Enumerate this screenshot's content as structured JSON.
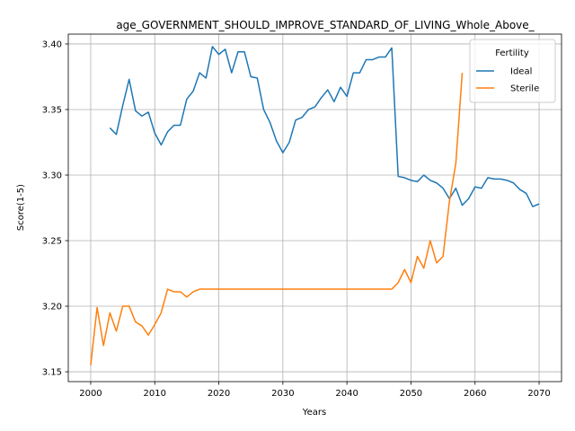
{
  "chart_data": {
    "type": "line",
    "title": "age_GOVERNMENT_SHOULD_IMPROVE_STANDARD_OF_LIVING_Whole_Above_",
    "xlabel": "Years",
    "ylabel": "Score(1-5)",
    "xlim": [
      1996.5,
      2073.5
    ],
    "ylim": [
      3.1425,
      3.4075
    ],
    "xticks": [
      2000,
      2010,
      2020,
      2030,
      2040,
      2050,
      2060,
      2070
    ],
    "yticks": [
      3.15,
      3.2,
      3.25,
      3.3,
      3.35,
      3.4
    ],
    "ytick_labels": [
      "3.15",
      "3.20",
      "3.25",
      "3.30",
      "3.35",
      "3.40"
    ],
    "grid": true,
    "legend": {
      "title": "Fertility",
      "placement": "upper right"
    },
    "series": [
      {
        "name": "Ideal",
        "color": "#1f77b4",
        "x": [
          2003,
          2004,
          2005,
          2006,
          2007,
          2008,
          2009,
          2010,
          2011,
          2012,
          2013,
          2014,
          2015,
          2016,
          2017,
          2018,
          2019,
          2020,
          2021,
          2022,
          2023,
          2024,
          2025,
          2026,
          2027,
          2028,
          2029,
          2030,
          2031,
          2032,
          2033,
          2034,
          2035,
          2036,
          2037,
          2038,
          2039,
          2040,
          2041,
          2042,
          2043,
          2044,
          2045,
          2046,
          2047,
          2048,
          2049,
          2050,
          2051,
          2052,
          2053,
          2054,
          2055,
          2056,
          2057,
          2058,
          2059,
          2060,
          2061,
          2062,
          2063,
          2064,
          2065,
          2066,
          2067,
          2068,
          2069,
          2070
        ],
        "y": [
          3.336,
          3.331,
          3.353,
          3.373,
          3.349,
          3.345,
          3.348,
          3.332,
          3.323,
          3.333,
          3.338,
          3.338,
          3.358,
          3.364,
          3.378,
          3.374,
          3.398,
          3.392,
          3.396,
          3.378,
          3.394,
          3.394,
          3.375,
          3.374,
          3.35,
          3.34,
          3.326,
          3.317,
          3.325,
          3.342,
          3.344,
          3.35,
          3.352,
          3.359,
          3.365,
          3.356,
          3.367,
          3.36,
          3.378,
          3.378,
          3.388,
          3.388,
          3.39,
          3.39,
          3.397,
          3.299,
          3.298,
          3.296,
          3.295,
          3.3,
          3.296,
          3.294,
          3.29,
          3.282,
          3.29,
          3.277,
          3.282,
          3.291,
          3.29,
          3.298,
          3.297,
          3.297,
          3.296,
          3.294,
          3.289,
          3.286,
          3.276,
          3.278
        ]
      },
      {
        "name": "Sterile",
        "color": "#ff7f0e",
        "x": [
          2000,
          2001,
          2002,
          2003,
          2004,
          2005,
          2006,
          2007,
          2008,
          2009,
          2010,
          2011,
          2012,
          2013,
          2014,
          2015,
          2016,
          2017,
          2018,
          2019,
          2020,
          2021,
          2022,
          2023,
          2024,
          2025,
          2026,
          2027,
          2028,
          2029,
          2030,
          2031,
          2032,
          2033,
          2034,
          2035,
          2036,
          2037,
          2038,
          2039,
          2040,
          2041,
          2042,
          2043,
          2044,
          2045,
          2046,
          2047,
          2048,
          2049,
          2050,
          2051,
          2052,
          2053,
          2054,
          2055,
          2056,
          2057,
          2058
        ],
        "y": [
          3.155,
          3.199,
          3.17,
          3.195,
          3.181,
          3.2,
          3.2,
          3.188,
          3.185,
          3.178,
          3.186,
          3.195,
          3.213,
          3.211,
          3.211,
          3.207,
          3.211,
          3.213,
          3.213,
          3.213,
          3.213,
          3.213,
          3.213,
          3.213,
          3.213,
          3.213,
          3.213,
          3.213,
          3.213,
          3.213,
          3.213,
          3.213,
          3.213,
          3.213,
          3.213,
          3.213,
          3.213,
          3.213,
          3.213,
          3.213,
          3.213,
          3.213,
          3.213,
          3.213,
          3.213,
          3.213,
          3.213,
          3.213,
          3.218,
          3.228,
          3.218,
          3.238,
          3.229,
          3.25,
          3.233,
          3.238,
          3.28,
          3.309,
          3.378
        ]
      }
    ]
  }
}
